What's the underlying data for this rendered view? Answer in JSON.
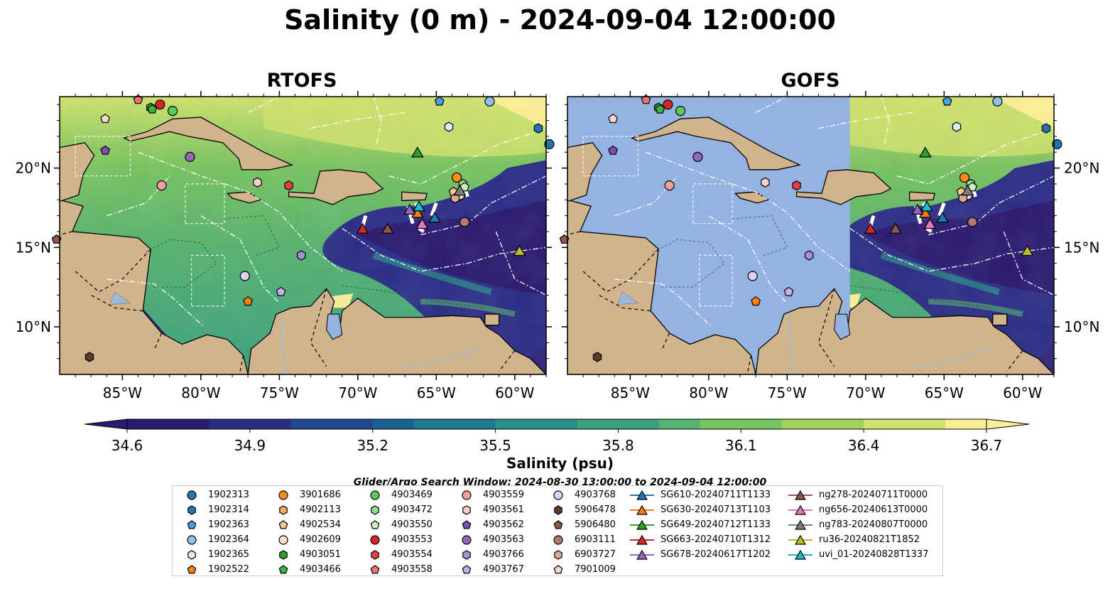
{
  "title": "Salinity (0 m) - 2024-09-04 12:00:00",
  "panels": [
    {
      "title": "RTOFS",
      "mask_lon_max": null
    },
    {
      "title": "GOFS",
      "mask_lon_max": -71.0
    }
  ],
  "colors": {
    "land": "#d2b48c",
    "mask": "#95b3e0",
    "lake": "#95b3e0",
    "low_bg": "#2b2479",
    "cmap": [
      "#2b1a70",
      "#2a2d85",
      "#21478f",
      "#1b6294",
      "#1f7b90",
      "#2a8f88",
      "#3aa17e",
      "#55b26f",
      "#78c35f",
      "#a3d25a",
      "#cfe26c",
      "#fbef95"
    ]
  },
  "colorbar": {
    "label": "Salinity (psu)",
    "min": 34.6,
    "max": 36.7,
    "ticks": [
      "34.6",
      "34.9",
      "35.2",
      "35.5",
      "35.8",
      "36.1",
      "36.4",
      "36.7"
    ]
  },
  "window_text": "Glider/Argo Search Window: 2024-08-30 13:00:00 to 2024-09-04 12:00:00",
  "chart_data": {
    "type": "map",
    "lon_range": [
      -89,
      -58
    ],
    "lat_range": [
      7,
      24.5
    ],
    "lon_ticks": [
      "85°W",
      "80°W",
      "75°W",
      "70°W",
      "65°W",
      "60°W"
    ],
    "lat_ticks": [
      "10°N",
      "15°N",
      "20°N"
    ],
    "argo_floats": [
      {
        "id": "1902313",
        "marker": "circle",
        "color": "#1f77b4",
        "lon": -57.8,
        "lat": 21.5
      },
      {
        "id": "1902314",
        "marker": "hexagon",
        "color": "#1f77b4",
        "lon": -58.5,
        "lat": 22.5
      },
      {
        "id": "1902363",
        "marker": "pentagon",
        "color": "#4c9fe0",
        "lon": -64.8,
        "lat": 24.2
      },
      {
        "id": "1902364",
        "marker": "circle",
        "color": "#8fc1ea",
        "lon": -61.6,
        "lat": 24.2
      },
      {
        "id": "1902365",
        "marker": "hexagon",
        "color": "#d6ecfa",
        "lon": -64.2,
        "lat": 22.6
      },
      {
        "id": "1902522",
        "marker": "pentagon",
        "color": "#ff7f0e",
        "lon": -77.0,
        "lat": 11.6
      },
      {
        "id": "3901686",
        "marker": "circle",
        "color": "#ff8c1a",
        "lon": -63.7,
        "lat": 19.4
      },
      {
        "id": "4902113",
        "marker": "hexagon",
        "color": "#ffab5e",
        "lon": -63.6,
        "lat": 18.2
      },
      {
        "id": "4902534",
        "marker": "pentagon",
        "color": "#ffc691",
        "lon": -63.9,
        "lat": 18.5
      },
      {
        "id": "4902609",
        "marker": "circle",
        "color": "#ffe3c4",
        "lon": -63.5,
        "lat": 18.3
      },
      {
        "id": "4903051",
        "marker": "hexagon",
        "color": "#2ca02c",
        "lon": -83.2,
        "lat": 23.8
      },
      {
        "id": "4903466",
        "marker": "pentagon",
        "color": "#3fb33f",
        "lon": -83.1,
        "lat": 23.7
      },
      {
        "id": "4903469",
        "marker": "circle",
        "color": "#5fc85f",
        "lon": -81.8,
        "lat": 23.6
      },
      {
        "id": "4903472",
        "marker": "hexagon",
        "color": "#98df8a",
        "lon": -63.3,
        "lat": 19.0
      },
      {
        "id": "4903550",
        "marker": "pentagon",
        "color": "#c8f0c0",
        "lon": -63.2,
        "lat": 18.8
      },
      {
        "id": "4903553",
        "marker": "circle",
        "color": "#d62728",
        "lon": -82.6,
        "lat": 24.0
      },
      {
        "id": "4903554",
        "marker": "hexagon",
        "color": "#e04040",
        "lon": -74.4,
        "lat": 18.9
      },
      {
        "id": "4903558",
        "marker": "pentagon",
        "color": "#f07070",
        "lon": -84.0,
        "lat": 24.3
      },
      {
        "id": "4903559",
        "marker": "circle",
        "color": "#f5a0a0",
        "lon": -82.5,
        "lat": 18.9
      },
      {
        "id": "4903561",
        "marker": "hexagon",
        "color": "#fbcfcf",
        "lon": -76.4,
        "lat": 19.1
      },
      {
        "id": "4903562",
        "marker": "pentagon",
        "color": "#7b4fb0",
        "lon": -86.1,
        "lat": 21.1
      },
      {
        "id": "4903563",
        "marker": "circle",
        "color": "#9467bd",
        "lon": -80.7,
        "lat": 20.7
      },
      {
        "id": "4903766",
        "marker": "hexagon",
        "color": "#a98fd6",
        "lon": -73.6,
        "lat": 14.5
      },
      {
        "id": "4903767",
        "marker": "pentagon",
        "color": "#c5b0ea",
        "lon": -74.9,
        "lat": 12.2
      },
      {
        "id": "4903768",
        "marker": "circle",
        "color": "#e0d0f5",
        "lon": -77.2,
        "lat": 13.2
      },
      {
        "id": "5906478",
        "marker": "hexagon",
        "color": "#5b3a29",
        "lon": -87.1,
        "lat": 8.1
      },
      {
        "id": "5906480",
        "marker": "pentagon",
        "color": "#8c564b",
        "lon": -89.2,
        "lat": 15.5
      },
      {
        "id": "6903111",
        "marker": "circle",
        "color": "#b07a6e",
        "lon": -63.2,
        "lat": 16.6
      },
      {
        "id": "6903727",
        "marker": "hexagon",
        "color": "#e0a89a",
        "lon": -63.8,
        "lat": 18.1
      },
      {
        "id": "7901009",
        "marker": "pentagon",
        "color": "#f8d6cc",
        "lon": -86.1,
        "lat": 23.1
      }
    ],
    "gliders": [
      {
        "id": "SG610-20240711T1133",
        "color": "#1f77b4",
        "lon": -65.1,
        "lat": 16.9,
        "track": [
          [
            -65.0,
            17.8
          ],
          [
            -65.3,
            17.0
          ]
        ]
      },
      {
        "id": "SG630-20240713T1103",
        "color": "#ff7f0e",
        "lon": -66.2,
        "lat": 17.2,
        "track": [
          [
            -66.3,
            17.8
          ],
          [
            -66.1,
            17.2
          ]
        ]
      },
      {
        "id": "SG649-20240712T1133",
        "color": "#2ca02c",
        "lon": -66.2,
        "lat": 21.0,
        "track": []
      },
      {
        "id": "SG663-20240710T1312",
        "color": "#d62728",
        "lon": -69.7,
        "lat": 16.2,
        "track": [
          [
            -69.5,
            17.0
          ],
          [
            -69.7,
            16.3
          ]
        ]
      },
      {
        "id": "SG678-20240617T1202",
        "color": "#9467bd",
        "lon": -66.7,
        "lat": 17.4,
        "track": [
          [
            -66.8,
            17.6
          ],
          [
            -66.5,
            16.5
          ]
        ]
      },
      {
        "id": "ng278-20240711T0000",
        "color": "#8c564b",
        "lon": -68.1,
        "lat": 16.2,
        "track": []
      },
      {
        "id": "ng656-20240613T0000",
        "color": "#e377c2",
        "lon": -65.9,
        "lat": 16.5,
        "track": [
          [
            -66.1,
            16.2
          ],
          [
            -65.8,
            16.0
          ]
        ]
      },
      {
        "id": "ng783-20240807T0000",
        "color": "#7f7f7f",
        "lon": -63.5,
        "lat": 18.6,
        "track": [
          [
            -63.2,
            18.8
          ],
          [
            -63.0,
            18.2
          ]
        ]
      },
      {
        "id": "ru36-20240821T1852",
        "color": "#bcbd22",
        "lon": -59.7,
        "lat": 14.8,
        "track": []
      },
      {
        "id": "uvi_01-20240828T1337",
        "color": "#17becf",
        "lon": -66.1,
        "lat": 17.6,
        "track": []
      }
    ]
  },
  "legend": {
    "columns": [
      [
        "1902313",
        "1902314",
        "1902363",
        "1902364",
        "1902365",
        "1902522"
      ],
      [
        "3901686",
        "4902113",
        "4902534",
        "4902609",
        "4903051",
        "4903466"
      ],
      [
        "4903469",
        "4903472",
        "4903550",
        "4903553",
        "4903554",
        "4903558"
      ],
      [
        "4903559",
        "4903561",
        "4903562",
        "4903563",
        "4903766",
        "4903767"
      ],
      [
        "4903768",
        "5906478",
        "5906480",
        "6903111",
        "6903727",
        "7901009"
      ],
      [
        "SG610-20240711T1133",
        "SG630-20240713T1103",
        "SG649-20240712T1133",
        "SG663-20240710T1312",
        "SG678-20240617T1202"
      ],
      [
        "ng278-20240711T0000",
        "ng656-20240613T0000",
        "ng783-20240807T0000",
        "ru36-20240821T1852",
        "uvi_01-20240828T1337"
      ]
    ]
  }
}
